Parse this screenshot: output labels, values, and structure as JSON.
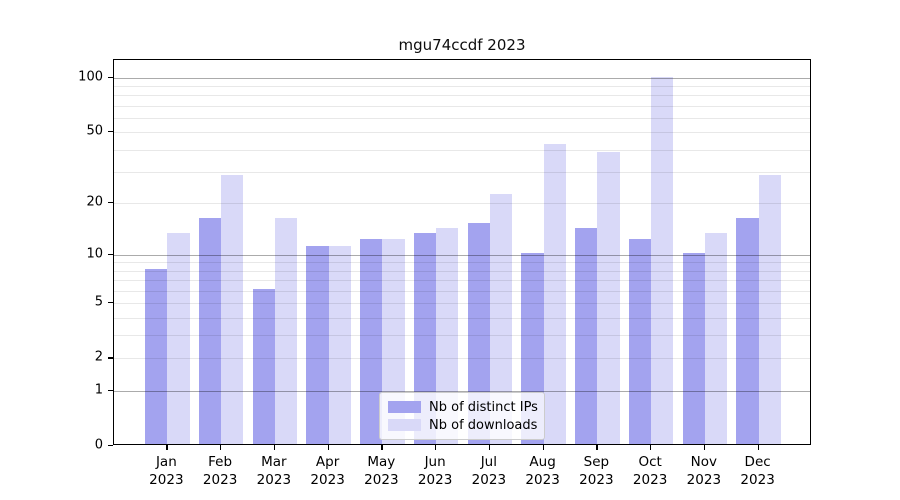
{
  "chart_data": {
    "type": "bar",
    "title": "mgu74ccdf 2023",
    "categories": [
      "Jan",
      "Feb",
      "Mar",
      "Apr",
      "May",
      "Jun",
      "Jul",
      "Aug",
      "Sep",
      "Oct",
      "Nov",
      "Dec"
    ],
    "category_year": "2023",
    "series": [
      {
        "name": "Nb of distinct IPs",
        "color": "#a3a3ef",
        "values": [
          8,
          16,
          6,
          11,
          12,
          13,
          15,
          10,
          14,
          12,
          10,
          16
        ]
      },
      {
        "name": "Nb of downloads",
        "color": "#d9d9f8",
        "values": [
          13,
          28,
          16,
          11,
          12,
          14,
          22,
          42,
          38,
          98,
          13,
          28
        ]
      }
    ],
    "xlabel": "",
    "ylabel": "",
    "yscale": "log1p",
    "ylim": [
      0,
      125
    ],
    "yticks": [
      0,
      1,
      2,
      5,
      10,
      20,
      50,
      100
    ],
    "minor_gridlines": [
      3,
      4,
      6,
      7,
      8,
      9,
      30,
      40,
      60,
      70,
      80,
      90
    ],
    "major_gridlines": [
      1,
      10,
      100
    ],
    "grid": true,
    "legend_position": "bottom-center"
  }
}
